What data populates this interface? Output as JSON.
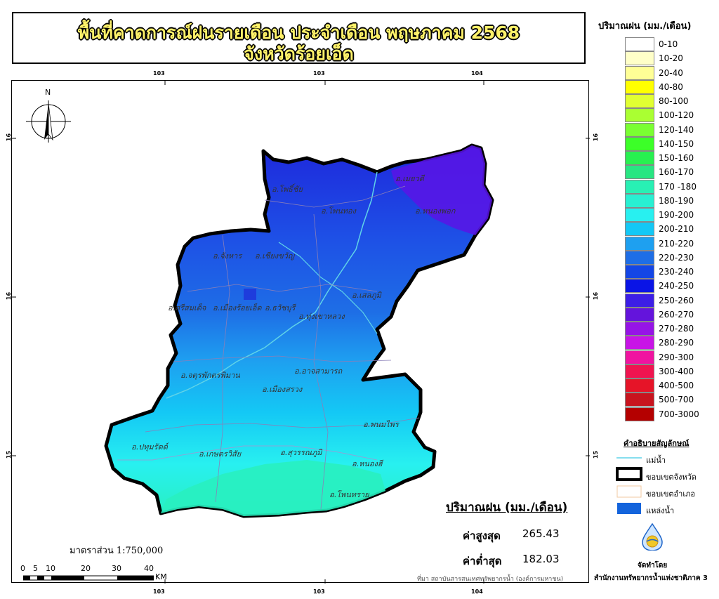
{
  "title": {
    "line1": "พื้นที่คาดการณ์ฝนรายเดือน ประจำเดือน พฤษภาคม 2568",
    "line2": "จังหวัดร้อยเอ็ด"
  },
  "grid_ticks": {
    "top": [
      "103",
      "103",
      "104"
    ],
    "bottom": [
      "103",
      "103",
      "104"
    ],
    "left": [
      "16",
      "16",
      "15"
    ],
    "right": [
      "16",
      "16",
      "15"
    ]
  },
  "north_arrow": {
    "label": "N"
  },
  "districts": [
    {
      "name": "อ.โพธิ์ชัย"
    },
    {
      "name": "อ.โพนทอง"
    },
    {
      "name": "อ.หนองพอก"
    },
    {
      "name": "อ.เมยวดี"
    },
    {
      "name": "อ.จังหาร"
    },
    {
      "name": "อ.เชียงขวัญ"
    },
    {
      "name": "อ.เสลภูมิ"
    },
    {
      "name": "อ.ศรีสมเด็จ"
    },
    {
      "name": "อ.เมืองร้อยเอ็ด"
    },
    {
      "name": "อ.ธวัชบุรี"
    },
    {
      "name": "อ.ทุ่งเขาหลวง"
    },
    {
      "name": "อ.จตุรพักตรพิมาน"
    },
    {
      "name": "อ.อาจสามารถ"
    },
    {
      "name": "อ.เมืองสรวง"
    },
    {
      "name": "อ.พนมไพร"
    },
    {
      "name": "อ.ปทุมรัตต์"
    },
    {
      "name": "อ.เกษตรวิสัย"
    },
    {
      "name": "อ.สุวรรณภูมิ"
    },
    {
      "name": "อ.หนองฮี"
    },
    {
      "name": "อ.โพนทราย"
    }
  ],
  "legend": {
    "title": "ปริมาณฝน (มม./เดือน)",
    "items": [
      {
        "label": "0-10",
        "color": "#ffffff"
      },
      {
        "label": "10-20",
        "color": "#ffffc8"
      },
      {
        "label": "20-40",
        "color": "#ffff96"
      },
      {
        "label": "40-80",
        "color": "#ffff00"
      },
      {
        "label": "80-100",
        "color": "#e1ff32"
      },
      {
        "label": "100-120",
        "color": "#aaff32"
      },
      {
        "label": "120-140",
        "color": "#7aff32"
      },
      {
        "label": "140-150",
        "color": "#3cff28"
      },
      {
        "label": "150-160",
        "color": "#28f050"
      },
      {
        "label": "160-170",
        "color": "#28e682"
      },
      {
        "label": "170 -180",
        "color": "#28f0b4"
      },
      {
        "label": "180-190",
        "color": "#28f0d2"
      },
      {
        "label": "190-200",
        "color": "#28f0f0"
      },
      {
        "label": "200-210",
        "color": "#14c8f5"
      },
      {
        "label": "210-220",
        "color": "#1ea0f0"
      },
      {
        "label": "220-230",
        "color": "#1e6ee6"
      },
      {
        "label": "230-240",
        "color": "#1446e6"
      },
      {
        "label": "240-250",
        "color": "#0a14e6"
      },
      {
        "label": "250-260",
        "color": "#3c1ee6"
      },
      {
        "label": "260-270",
        "color": "#6414dc"
      },
      {
        "label": "270-280",
        "color": "#9614e6"
      },
      {
        "label": "280-290",
        "color": "#c814e6"
      },
      {
        "label": "290-300",
        "color": "#f014a0"
      },
      {
        "label": "300-400",
        "color": "#f01450"
      },
      {
        "label": "400-500",
        "color": "#e61428"
      },
      {
        "label": "500-700",
        "color": "#c8141e"
      },
      {
        "label": "700-3000",
        "color": "#b40000"
      }
    ]
  },
  "symbols": {
    "title": "คำอธิบายสัญลักษณ์",
    "items": [
      {
        "label": "แม่น้ำ"
      },
      {
        "label": "ขอบเขตจังหวัด"
      },
      {
        "label": "ขอบเขตอำเภอ"
      },
      {
        "label": "แหล่งน้ำ"
      }
    ]
  },
  "stats": {
    "title": "ปริมาณฝน (มม./เดือน)",
    "max_label": "ค่าสูงสุด",
    "max_value": "265.43",
    "min_label": "ค่าต่ำสุด",
    "min_value": "182.03"
  },
  "scale": {
    "label": "มาตราส่วน 1:750,000",
    "ticks": [
      "0",
      "5",
      "10",
      "20",
      "30",
      "40"
    ],
    "unit": "KM"
  },
  "source": "ที่มา  สถาบันสารสนเทศทรัพยากรน้ำ (องค์การมหาชน)",
  "credit": {
    "label": "จัดทำโดย",
    "org": "สำนักงานทรัพยากรน้ำแห่งชาติภาค 3"
  },
  "colors": {
    "title_fill": "#fff26a",
    "river": "#5fd3e8",
    "reservoir": "#1464dc"
  }
}
